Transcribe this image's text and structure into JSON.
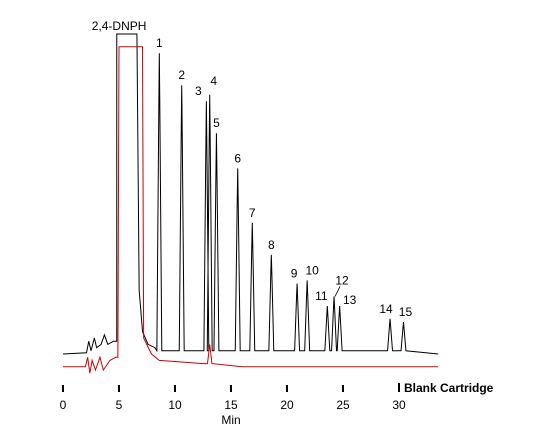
{
  "chart_data": {
    "type": "line",
    "xlabel": "Min",
    "ylabel": "",
    "xlim": [
      0,
      33.5
    ],
    "ylim": [
      0,
      100
    ],
    "x_ticks": [
      0,
      5,
      10,
      15,
      20,
      25,
      30
    ],
    "legend_text": "Blank Cartridge",
    "colors": {
      "sample": "#000000",
      "blank": "#cc0000"
    },
    "sample_trace": {
      "name": "",
      "baseline": 0,
      "saturated_peak": {
        "start": 4.8,
        "end": 6.6,
        "height": 100
      },
      "peaks": [
        {
          "label": "1",
          "x": 8.6,
          "height": 94
        },
        {
          "label": "2",
          "x": 10.6,
          "height": 84
        },
        {
          "label": "3",
          "x": 12.8,
          "height": 79
        },
        {
          "label": "4",
          "x": 13.1,
          "height": 81
        },
        {
          "label": "5",
          "x": 13.7,
          "height": 69
        },
        {
          "label": "6",
          "x": 15.6,
          "height": 58
        },
        {
          "label": "7",
          "x": 16.9,
          "height": 41
        },
        {
          "label": "8",
          "x": 18.6,
          "height": 31
        },
        {
          "label": "9",
          "x": 20.9,
          "height": 22
        },
        {
          "label": "10",
          "x": 21.8,
          "height": 23
        },
        {
          "label": "11",
          "x": 23.6,
          "height": 15
        },
        {
          "label": "12",
          "x": 24.2,
          "height": 18
        },
        {
          "label": "13",
          "x": 24.7,
          "height": 15
        },
        {
          "label": "14",
          "x": 29.2,
          "height": 11
        },
        {
          "label": "15",
          "x": 30.4,
          "height": 10
        }
      ],
      "peak_group_label": "2,4-DNPH"
    },
    "blank_trace": {
      "name": "Blank Cartridge",
      "baseline": -4,
      "saturated_peak": {
        "start": 4.9,
        "end": 7.1,
        "height": 96
      },
      "small_peaks": [
        {
          "x": 13.1,
          "height": 3
        }
      ]
    }
  }
}
